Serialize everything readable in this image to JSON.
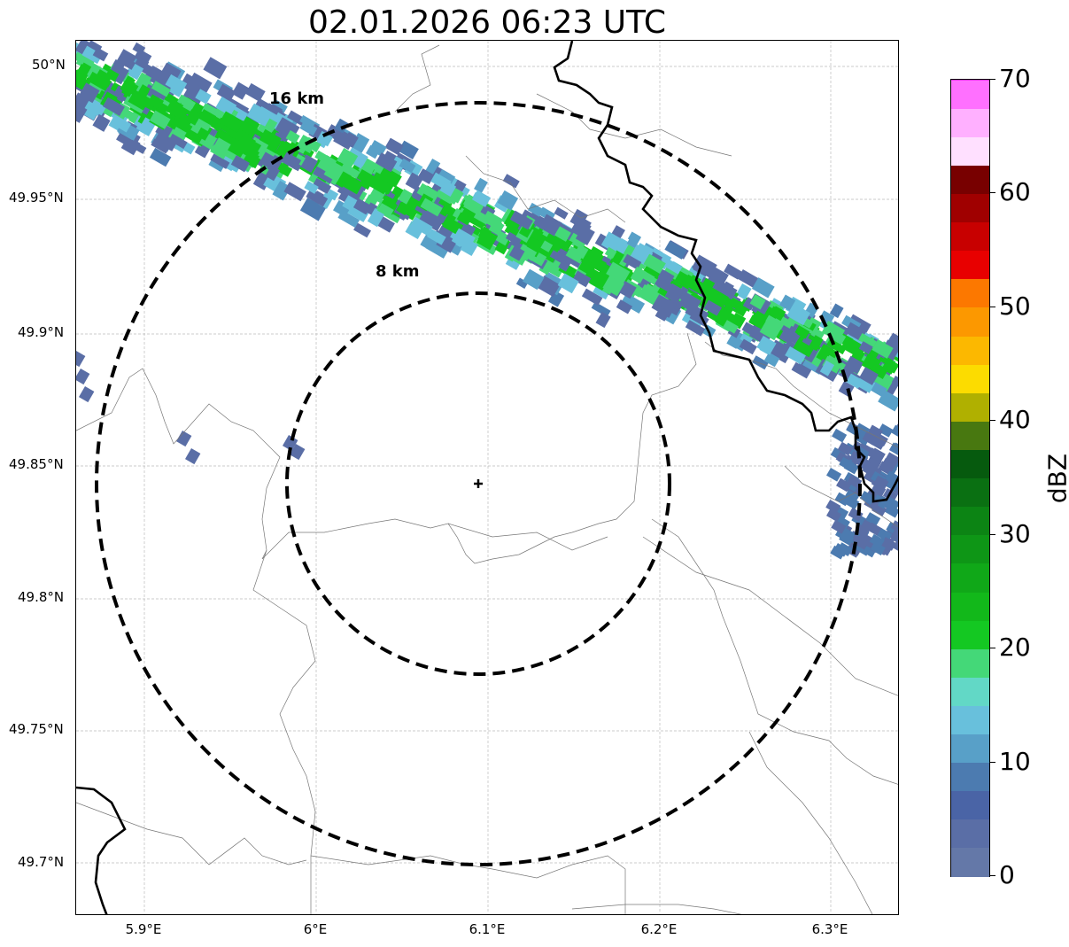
{
  "title": "02.01.2026 06:23 UTC",
  "map": {
    "lat_ticks": [
      "50°N",
      "49.95°N",
      "49.9°N",
      "49.85°N",
      "49.8°N",
      "49.75°N",
      "49.7°N"
    ],
    "lon_ticks": [
      "5.9°E",
      "6°E",
      "6.1°E",
      "6.2°E",
      "6.3°E"
    ],
    "range_rings": [
      {
        "label": "8 km",
        "radius_km": 8
      },
      {
        "label": "16 km",
        "radius_km": 16
      }
    ],
    "radar_site": {
      "lat": 49.843,
      "lon": 6.095
    },
    "gridlines": true
  },
  "colorbar": {
    "label": "dBZ",
    "ticks": [
      "0",
      "10",
      "20",
      "30",
      "40",
      "50",
      "60",
      "70"
    ],
    "min": 0,
    "max": 70,
    "step": 2.5,
    "colors": [
      "#6478a8",
      "#5a6ea6",
      "#4a64a6",
      "#4c7bb0",
      "#58a0c8",
      "#68c0dc",
      "#62d8c6",
      "#44d878",
      "#14c822",
      "#12b81a",
      "#10a818",
      "#0e9616",
      "#0c8414",
      "#0a7012",
      "#065a0e",
      "#487810",
      "#b0b000",
      "#fcdc00",
      "#fcb800",
      "#fc9800",
      "#fc7800",
      "#e80000",
      "#c80000",
      "#a00000",
      "#780000",
      "#ffe0ff",
      "#ffb0ff",
      "#ff70ff",
      "#f030f0"
    ]
  },
  "echo_colors": {
    "weak": "#5a6ea6",
    "light": "#4c7bb0",
    "mid": "#58a0c8",
    "cyan": "#68c0dc",
    "green": "#14c822",
    "bright": "#44d878"
  }
}
